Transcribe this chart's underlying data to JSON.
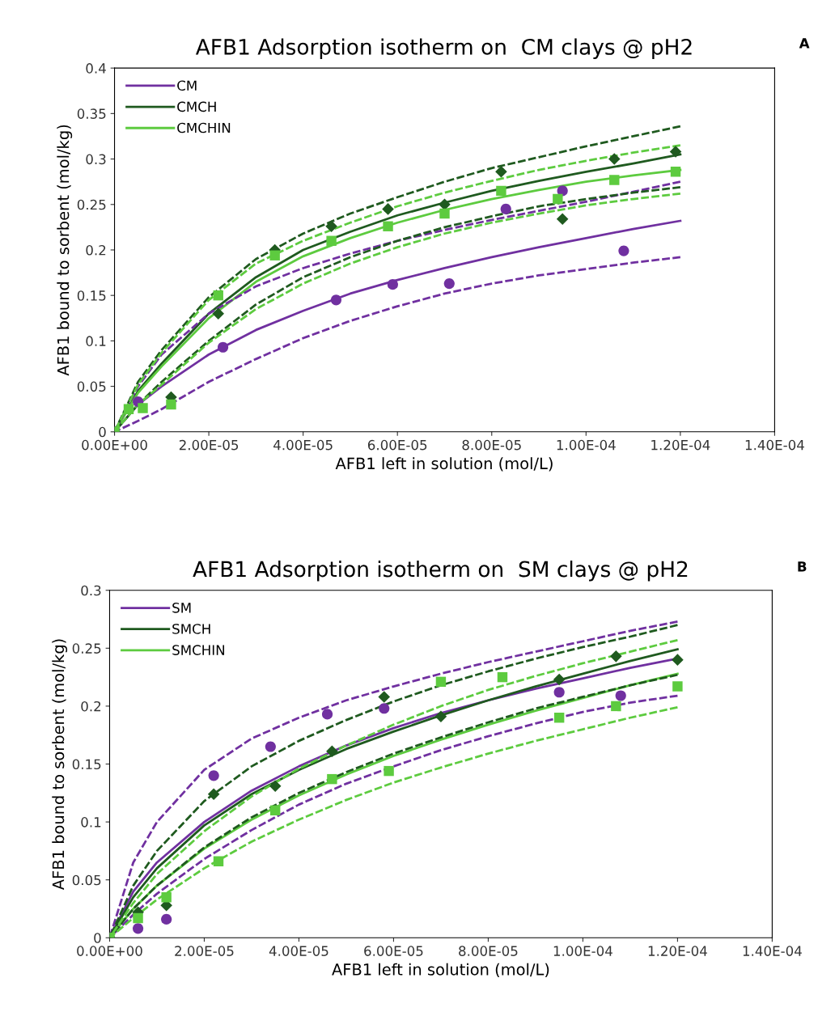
{
  "chart_data": [
    {
      "type": "line",
      "title": "AFB1 Adsorption isotherm on  CM clays @ pH2",
      "xlabel": "AFB1 left in solution (mol/L)",
      "ylabel": "AFB1 bound to sorbent (mol/kg)",
      "annotations": [
        "A"
      ],
      "xlim": [
        0,
        0.00014
      ],
      "xticks": [
        {
          "value": 0,
          "label": "0.00E+00"
        },
        {
          "value": 2e-05,
          "label": "2.00E-05"
        },
        {
          "value": 4e-05,
          "label": "4.00E-05"
        },
        {
          "value": 6e-05,
          "label": "6.00E-05"
        },
        {
          "value": 8e-05,
          "label": "8.00E-05"
        },
        {
          "value": 0.0001,
          "label": "1.00E-04"
        },
        {
          "value": 0.00012,
          "label": "1.20E-04"
        },
        {
          "value": 0.00014,
          "label": "1.40E-04"
        }
      ],
      "ylim": [
        0,
        0.4
      ],
      "yticks": [
        0,
        0.05,
        0.1,
        0.15,
        0.2,
        0.25,
        0.3,
        0.35,
        0.4
      ],
      "grid": false,
      "legend": "top left",
      "x": [
        0,
        5e-06,
        1e-05,
        2e-05,
        3e-05,
        4e-05,
        5e-05,
        6e-05,
        7e-05,
        8e-05,
        9e-05,
        0.0001,
        0.00011,
        0.00012
      ],
      "series": [
        {
          "name": "CM",
          "color": "#7030a0",
          "line_style": "solid",
          "values": [
            0,
            0.03,
            0.05,
            0.085,
            0.112,
            0.133,
            0.152,
            0.167,
            0.18,
            0.192,
            0.203,
            0.213,
            0.223,
            0.232
          ]
        },
        {
          "name": "CMCH",
          "color": "#1f5a1f",
          "line_style": "solid",
          "values": [
            0,
            0.045,
            0.075,
            0.13,
            0.17,
            0.2,
            0.22,
            0.238,
            0.252,
            0.265,
            0.276,
            0.286,
            0.295,
            0.305
          ]
        },
        {
          "name": "CMCHIN",
          "color": "#5dcb3f",
          "line_style": "solid",
          "values": [
            0,
            0.043,
            0.072,
            0.125,
            0.165,
            0.193,
            0.213,
            0.23,
            0.244,
            0.256,
            0.266,
            0.275,
            0.282,
            0.288
          ]
        },
        {
          "color": "#7030a0",
          "line_style": "dashed",
          "values": [
            0,
            0.05,
            0.085,
            0.13,
            0.16,
            0.18,
            0.196,
            0.21,
            0.222,
            0.233,
            0.243,
            0.253,
            0.264,
            0.275
          ]
        },
        {
          "color": "#7030a0",
          "line_style": "dashed",
          "values": [
            0,
            0.012,
            0.025,
            0.055,
            0.08,
            0.103,
            0.122,
            0.138,
            0.152,
            0.163,
            0.172,
            0.179,
            0.186,
            0.192
          ]
        },
        {
          "color": "#1f5a1f",
          "line_style": "dashed",
          "values": [
            0,
            0.055,
            0.09,
            0.148,
            0.19,
            0.218,
            0.24,
            0.258,
            0.275,
            0.29,
            0.302,
            0.314,
            0.325,
            0.336
          ]
        },
        {
          "color": "#1f5a1f",
          "line_style": "dashed",
          "values": [
            0,
            0.03,
            0.055,
            0.1,
            0.14,
            0.17,
            0.192,
            0.21,
            0.225,
            0.237,
            0.248,
            0.256,
            0.263,
            0.269
          ]
        },
        {
          "color": "#5dcb3f",
          "line_style": "dashed",
          "values": [
            0,
            0.052,
            0.087,
            0.145,
            0.185,
            0.21,
            0.23,
            0.248,
            0.263,
            0.276,
            0.288,
            0.298,
            0.307,
            0.315
          ]
        },
        {
          "color": "#5dcb3f",
          "line_style": "dashed",
          "values": [
            0,
            0.03,
            0.052,
            0.098,
            0.135,
            0.163,
            0.185,
            0.203,
            0.218,
            0.23,
            0.24,
            0.249,
            0.256,
            0.262
          ]
        },
        {
          "type": "scatter",
          "marker": "circle",
          "color": "#7030a0",
          "x": [
            0,
            5e-06,
            2.3e-05,
            4.7e-05,
            5.9e-05,
            7.1e-05,
            8.3e-05,
            9.5e-05,
            0.000108
          ],
          "values": [
            0,
            0.033,
            0.093,
            0.145,
            0.162,
            0.163,
            0.245,
            0.265,
            0.199
          ]
        },
        {
          "type": "scatter",
          "marker": "diamond",
          "color": "#1f5a1f",
          "x": [
            0,
            3e-06,
            1.2e-05,
            2.2e-05,
            3.4e-05,
            4.6e-05,
            5.8e-05,
            7e-05,
            8.2e-05,
            9.5e-05,
            0.000106,
            0.000119
          ],
          "values": [
            0,
            null,
            0.038,
            0.13,
            0.2,
            0.226,
            0.245,
            0.25,
            0.286,
            0.234,
            0.3,
            0.308
          ]
        },
        {
          "type": "scatter",
          "marker": "square",
          "color": "#5dcb3f",
          "x": [
            0,
            3e-06,
            6e-06,
            1.2e-05,
            2.2e-05,
            3.4e-05,
            4.6e-05,
            5.8e-05,
            7e-05,
            8.2e-05,
            9.4e-05,
            0.000106,
            0.000119
          ],
          "values": [
            0,
            0.025,
            0.026,
            0.03,
            0.15,
            0.194,
            0.21,
            0.226,
            0.24,
            0.265,
            0.256,
            0.277,
            0.286
          ]
        }
      ]
    },
    {
      "type": "line",
      "title": "AFB1 Adsorption isotherm on  SM clays @ pH2",
      "xlabel": "AFB1 left in solution (mol/L)",
      "ylabel": "AFB1 bound to sorbent (mol/kg)",
      "annotations": [
        "B"
      ],
      "xlim": [
        0,
        0.00014
      ],
      "xticks": [
        {
          "value": 0,
          "label": "0.00E+00"
        },
        {
          "value": 2e-05,
          "label": "2.00E-05"
        },
        {
          "value": 4e-05,
          "label": "4.00E-05"
        },
        {
          "value": 6e-05,
          "label": "6.00E-05"
        },
        {
          "value": 8e-05,
          "label": "8.00E-05"
        },
        {
          "value": 0.0001,
          "label": "1.00E-04"
        },
        {
          "value": 0.00012,
          "label": "1.20E-04"
        },
        {
          "value": 0.00014,
          "label": "1.40E-04"
        }
      ],
      "ylim": [
        0,
        0.3
      ],
      "yticks": [
        0,
        0.05,
        0.1,
        0.15,
        0.2,
        0.25,
        0.3
      ],
      "grid": false,
      "legend": "top left",
      "x": [
        0,
        5e-06,
        1e-05,
        2e-05,
        3e-05,
        4e-05,
        5e-05,
        6e-05,
        7e-05,
        8e-05,
        9e-05,
        0.0001,
        0.00011,
        0.00012
      ],
      "series": [
        {
          "name": "SM",
          "color": "#7030a0",
          "line_style": "solid",
          "values": [
            0,
            0.04,
            0.065,
            0.1,
            0.127,
            0.148,
            0.166,
            0.181,
            0.194,
            0.205,
            0.215,
            0.224,
            0.233,
            0.241
          ]
        },
        {
          "name": "SMCH",
          "color": "#1f5a1f",
          "line_style": "solid",
          "values": [
            0,
            0.035,
            0.06,
            0.097,
            0.124,
            0.145,
            0.163,
            0.178,
            0.192,
            0.205,
            0.217,
            0.228,
            0.239,
            0.249
          ]
        },
        {
          "name": "SMCHIN",
          "color": "#5dcb3f",
          "line_style": "solid",
          "values": [
            0,
            0.025,
            0.045,
            0.077,
            0.102,
            0.123,
            0.141,
            0.157,
            0.171,
            0.184,
            0.196,
            0.207,
            0.218,
            0.228
          ]
        },
        {
          "color": "#7030a0",
          "line_style": "dashed",
          "values": [
            0,
            0.065,
            0.1,
            0.145,
            0.172,
            0.19,
            0.205,
            0.217,
            0.228,
            0.238,
            0.247,
            0.256,
            0.265,
            0.273
          ]
        },
        {
          "color": "#7030a0",
          "line_style": "dashed",
          "values": [
            0,
            0.02,
            0.038,
            0.068,
            0.093,
            0.115,
            0.133,
            0.148,
            0.162,
            0.174,
            0.185,
            0.195,
            0.203,
            0.209
          ]
        },
        {
          "color": "#1f5a1f",
          "line_style": "dashed",
          "values": [
            0,
            0.045,
            0.075,
            0.118,
            0.148,
            0.17,
            0.188,
            0.204,
            0.218,
            0.23,
            0.241,
            0.251,
            0.26,
            0.27
          ]
        },
        {
          "color": "#1f5a1f",
          "line_style": "dashed",
          "values": [
            0,
            0.025,
            0.045,
            0.078,
            0.104,
            0.125,
            0.143,
            0.159,
            0.173,
            0.186,
            0.198,
            0.208,
            0.218,
            0.227
          ]
        },
        {
          "color": "#5dcb3f",
          "line_style": "dashed",
          "values": [
            0,
            0.03,
            0.055,
            0.092,
            0.122,
            0.146,
            0.166,
            0.184,
            0.2,
            0.214,
            0.226,
            0.237,
            0.247,
            0.257
          ]
        },
        {
          "color": "#5dcb3f",
          "line_style": "dashed",
          "values": [
            0,
            0.017,
            0.033,
            0.06,
            0.083,
            0.102,
            0.119,
            0.134,
            0.147,
            0.159,
            0.17,
            0.18,
            0.19,
            0.199
          ]
        },
        {
          "type": "scatter",
          "marker": "circle",
          "color": "#7030a0",
          "x": [
            0,
            6e-06,
            1.2e-05,
            2.2e-05,
            3.4e-05,
            4.6e-05,
            5.8e-05,
            9.5e-05,
            0.000108
          ],
          "values": [
            0,
            0.008,
            0.016,
            0.14,
            0.165,
            0.193,
            0.198,
            0.212,
            0.209
          ]
        },
        {
          "type": "scatter",
          "marker": "diamond",
          "color": "#1f5a1f",
          "x": [
            0,
            6e-06,
            1.2e-05,
            2.2e-05,
            3.5e-05,
            4.7e-05,
            5.8e-05,
            7e-05,
            9.5e-05,
            0.000107,
            0.00012
          ],
          "values": [
            0,
            0.022,
            0.028,
            0.124,
            0.131,
            0.161,
            0.208,
            0.191,
            0.223,
            0.243,
            0.24
          ]
        },
        {
          "type": "scatter",
          "marker": "square",
          "color": "#5dcb3f",
          "x": [
            0,
            6e-06,
            1.2e-05,
            2.3e-05,
            3.5e-05,
            4.7e-05,
            5.9e-05,
            7e-05,
            8.3e-05,
            9.5e-05,
            0.000107,
            0.00012
          ],
          "values": [
            0,
            0.017,
            0.035,
            0.066,
            0.11,
            0.137,
            0.144,
            0.221,
            0.225,
            0.19,
            0.2,
            0.217
          ]
        }
      ]
    }
  ]
}
